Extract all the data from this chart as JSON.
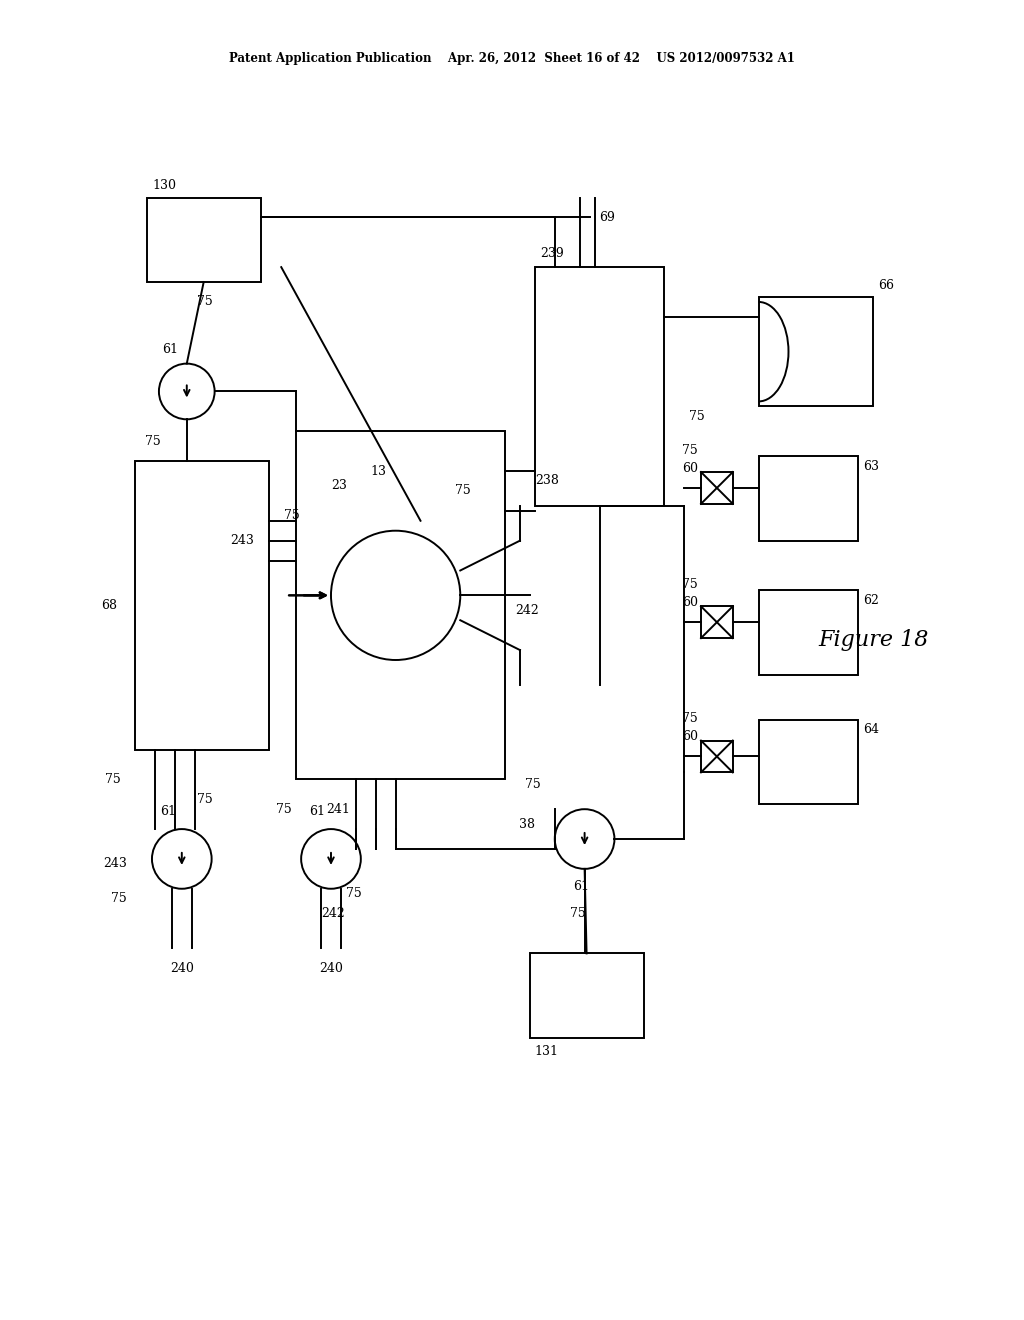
{
  "bg_color": "#ffffff",
  "line_color": "#000000",
  "lw": 1.4,
  "header": "Patent Application Publication    Apr. 26, 2012  Sheet 16 of 42    US 2012/0097532 A1"
}
